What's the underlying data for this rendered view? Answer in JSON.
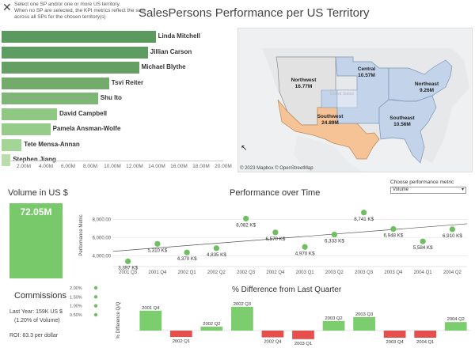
{
  "header": {
    "close_glyph": "✕",
    "instructions": "Select one SP and/or one or more US territory.\nWhen no SP are selected, the KPI metrics reflect the sum across all SPs for the chosen territory(s)",
    "title": "SalesPersons Performance per US Territory"
  },
  "sales_by_person": {
    "unit_max": 20000000,
    "items": [
      {
        "name": "Linda Mitchell",
        "value": 13900000,
        "color": "#5a9a5f"
      },
      {
        "name": "Jillian Carson",
        "value": 13200000,
        "color": "#5d9d61"
      },
      {
        "name": "Michael Blythe",
        "value": 12400000,
        "color": "#649f63"
      },
      {
        "name": "Tsvi Reiter",
        "value": 9700000,
        "color": "#73ab6b"
      },
      {
        "name": "Shu Ito",
        "value": 8700000,
        "color": "#7fb677"
      },
      {
        "name": "David Campbell",
        "value": 5000000,
        "color": "#8ec883"
      },
      {
        "name": "Pamela Ansman-Wolfe",
        "value": 4400000,
        "color": "#95cc89"
      },
      {
        "name": "Tete Mensa-Annan",
        "value": 1800000,
        "color": "#a3d596"
      },
      {
        "name": "Stephen Jiang",
        "value": 800000,
        "color": "#b7e0a9"
      }
    ],
    "ticks": [
      "2.00M",
      "4.00M",
      "6.00M",
      "8.00M",
      "10.00M",
      "12.00M",
      "14.00M",
      "16.00M",
      "18.00M",
      "20.00M"
    ]
  },
  "map": {
    "credit": "© 2023 Mapbox  © OpenStreetMap",
    "regions": [
      {
        "name": "Northwest",
        "value": "16.77M",
        "color": "#e2e2e2"
      },
      {
        "name": "Central",
        "value": "10.57M",
        "color": "#c2d3ea"
      },
      {
        "name": "Northeast",
        "value": "9.26M",
        "color": "#c2d3ea"
      },
      {
        "name": "Southwest",
        "value": "24.89M",
        "color": "#f6c397"
      },
      {
        "name": "Southeast",
        "value": "10.56M",
        "color": "#c2d3ea"
      }
    ],
    "watermark": "United States"
  },
  "volume": {
    "title": "Volume in US $",
    "value": "72.05M",
    "color": "#78c96a"
  },
  "performance": {
    "title": "Performance over Time",
    "selector_label": "Choose performance metric",
    "selector_value": "Volume",
    "y_axis_title": "Performance Metric",
    "y_ticks": [
      "4,000.00",
      "6,000.00",
      "8,000.00"
    ],
    "quarters": [
      "2001 Q3",
      "2001 Q4",
      "2002 Q1",
      "2002 Q2",
      "2002 Q3",
      "2002 Q4",
      "2003 Q1",
      "2003 Q2",
      "2003 Q3",
      "2003 Q4",
      "2004 Q1",
      "2004 Q2"
    ]
  },
  "chart_data": [
    {
      "type": "bar",
      "orientation": "horizontal",
      "categories": [
        "Linda Mitchell",
        "Jillian Carson",
        "Michael Blythe",
        "Tsvi Reiter",
        "Shu Ito",
        "David Campbell",
        "Pamela Ansman-Wolfe",
        "Tete Mensa-Annan",
        "Stephen Jiang"
      ],
      "values": [
        13900000,
        13200000,
        12400000,
        9700000,
        8700000,
        5000000,
        4400000,
        1800000,
        800000
      ],
      "xlim": [
        0,
        20000000
      ]
    },
    {
      "type": "scatter",
      "categories": [
        "2001 Q3",
        "2001 Q4",
        "2002 Q1",
        "2002 Q2",
        "2002 Q3",
        "2002 Q4",
        "2003 Q1",
        "2003 Q2",
        "2003 Q3",
        "2003 Q4",
        "2004 Q1",
        "2004 Q2"
      ],
      "values": [
        3397,
        5310,
        4370,
        4835,
        8082,
        6570,
        4970,
        6333,
        8741,
        6948,
        5584,
        6910
      ],
      "labels": [
        "3,397 K$",
        "5,310 K$",
        "4,370 K$",
        "4,835 K$",
        "8,082 K$",
        "6,570 K$",
        "4,970 K$",
        "6,333 K$",
        "8,741 K$",
        "6,948 K$",
        "5,584 K$",
        "6,910 K$"
      ],
      "ylabel": "Performance Metric",
      "ylim": [
        3000,
        9500
      ],
      "trend_line": true
    },
    {
      "type": "bar",
      "title": "% Difference from Last Quarter",
      "ylabel": "% Difference Q/Q",
      "categories": [
        "2001 Q4",
        "2002 Q1",
        "2002 Q2",
        "2002 Q3",
        "2002 Q4",
        "2003 Q1",
        "2003 Q2",
        "2003 Q3",
        "2003 Q4",
        "2004 Q1",
        "2004 Q2"
      ],
      "values": [
        56,
        -18,
        11,
        67,
        -19,
        -24,
        27,
        38,
        -20,
        -20,
        24
      ],
      "positive_color": "#7ccd6d",
      "negative_color": "#e5504f"
    }
  ],
  "commissions": {
    "title": "Commissions",
    "last_year": "Last Year: 159K US $",
    "pct_of_volume": "(1.20% of Volume)",
    "roi": "ROI:  83.3  per dollar",
    "mini_ticks": [
      "2.00%",
      "1.50%",
      "1.00%",
      "0.50%"
    ],
    "mini_values": [
      2.0,
      1.5,
      1.0,
      0.5
    ]
  }
}
